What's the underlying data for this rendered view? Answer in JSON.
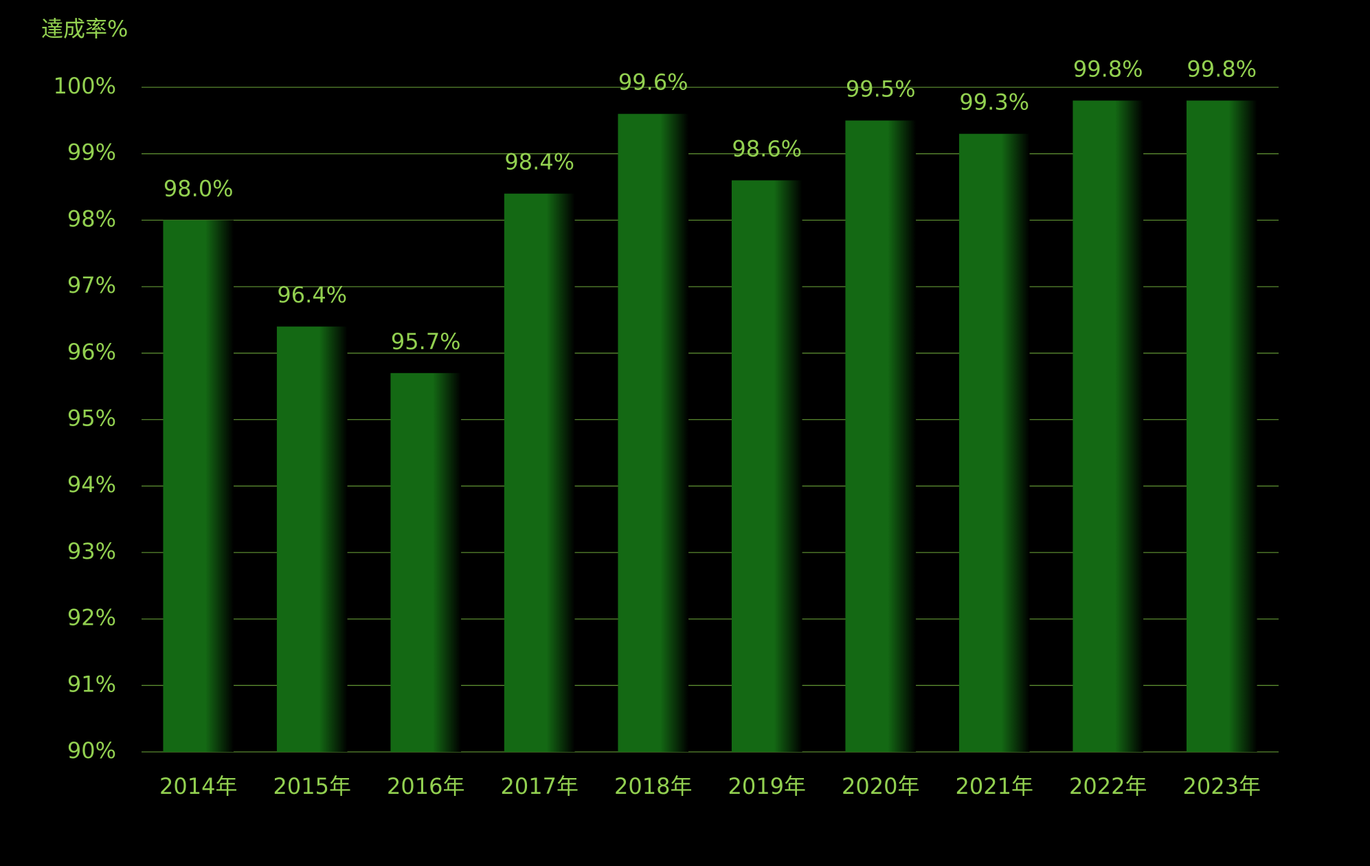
{
  "chart_data": {
    "type": "bar",
    "y_axis_label": "達成率%",
    "categories": [
      "2014年",
      "2015年",
      "2016年",
      "2017年",
      "2018年",
      "2019年",
      "2020年",
      "2021年",
      "2022年",
      "2023年"
    ],
    "values": [
      98.0,
      96.4,
      95.7,
      98.4,
      99.6,
      98.6,
      99.5,
      99.3,
      99.8,
      99.8
    ],
    "value_labels": [
      "98.0%",
      "96.4%",
      "95.7%",
      "98.4%",
      "99.6%",
      "98.6%",
      "99.5%",
      "99.3%",
      "99.8%",
      "99.8%"
    ],
    "color": "#146914",
    "ylim": [
      90,
      100
    ],
    "yticks": [
      {
        "value": 90,
        "label": "90%"
      },
      {
        "value": 91,
        "label": "91%"
      },
      {
        "value": 92,
        "label": "92%"
      },
      {
        "value": 93,
        "label": "93%"
      },
      {
        "value": 94,
        "label": "94%"
      },
      {
        "value": 95,
        "label": "95%"
      },
      {
        "value": 96,
        "label": "96%"
      },
      {
        "value": 97,
        "label": "97%"
      },
      {
        "value": 98,
        "label": "98%"
      },
      {
        "value": 99,
        "label": "99%"
      },
      {
        "value": 100,
        "label": "100%"
      }
    ],
    "grid": true
  }
}
